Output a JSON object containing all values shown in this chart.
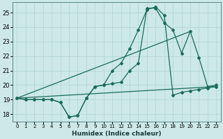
{
  "xlabel": "Humidex (Indice chaleur)",
  "xlim": [
    -0.5,
    23.5
  ],
  "ylim": [
    17.5,
    25.7
  ],
  "yticks": [
    18,
    19,
    20,
    21,
    22,
    23,
    24,
    25
  ],
  "xticks": [
    0,
    1,
    2,
    3,
    4,
    5,
    6,
    7,
    8,
    9,
    10,
    11,
    12,
    13,
    14,
    15,
    16,
    17,
    18,
    19,
    20,
    21,
    22,
    23
  ],
  "bg_color": "#cce8e8",
  "grid_color": "#b0d4d4",
  "line_color": "#1a6b5a",
  "line1_x": [
    0,
    1,
    2,
    3,
    4,
    5,
    6,
    7,
    8,
    9,
    10,
    11,
    12,
    13,
    14,
    15,
    16,
    17,
    18,
    19,
    20,
    21,
    22,
    23
  ],
  "line1_y": [
    19.1,
    19.0,
    19.0,
    19.0,
    19.0,
    18.8,
    17.8,
    17.9,
    19.1,
    19.9,
    20.0,
    20.1,
    20.2,
    21.0,
    21.5,
    25.3,
    25.3,
    24.3,
    23.8,
    22.2,
    23.7,
    21.9,
    19.9,
    20.0
  ],
  "line2_x": [
    0,
    1,
    2,
    3,
    4,
    5,
    6,
    7,
    8,
    9,
    10,
    11,
    12,
    13,
    14,
    15,
    16,
    17,
    18,
    19,
    20,
    21,
    22,
    23
  ],
  "line2_y": [
    19.1,
    19.0,
    19.0,
    19.0,
    19.0,
    18.8,
    17.8,
    17.9,
    19.1,
    19.9,
    20.0,
    21.0,
    21.5,
    22.5,
    23.8,
    25.2,
    25.4,
    24.8,
    19.3,
    19.5,
    19.6,
    19.7,
    19.8,
    19.9
  ],
  "line3_x": [
    0,
    23
  ],
  "line3_y": [
    19.1,
    19.9
  ],
  "line4_x": [
    0,
    20
  ],
  "line4_y": [
    19.1,
    23.7
  ]
}
